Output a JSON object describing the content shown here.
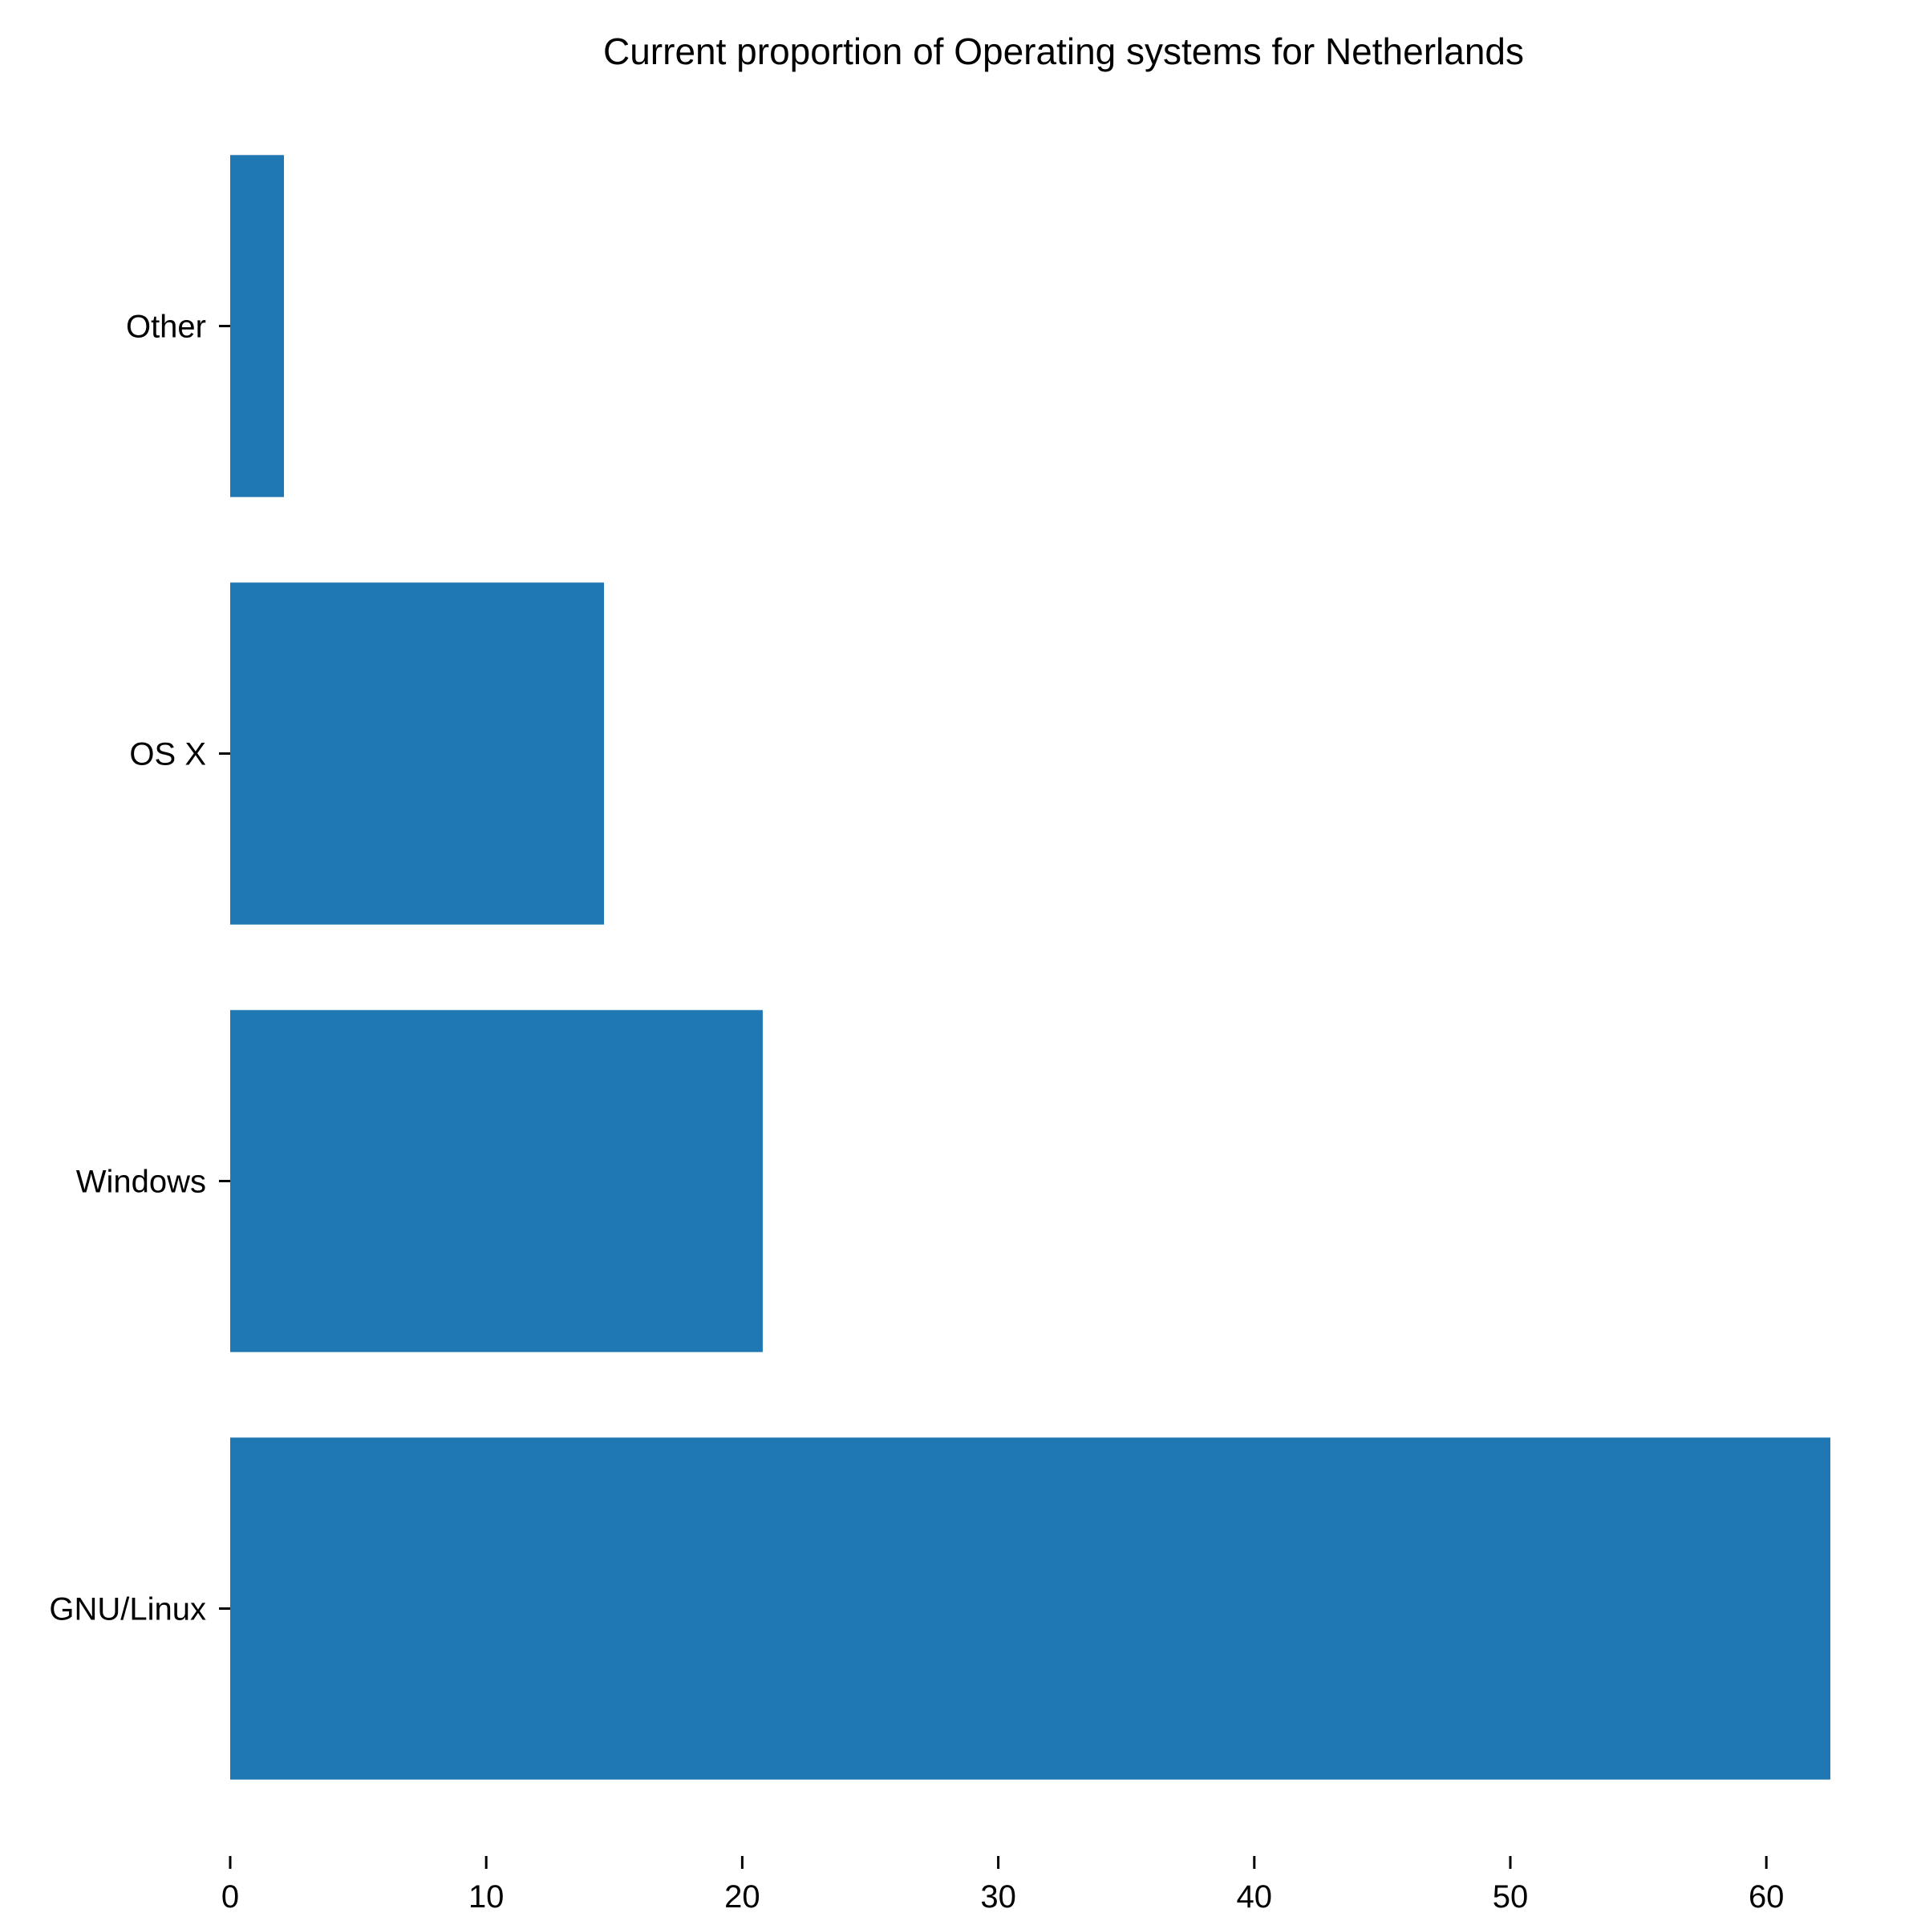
{
  "chart_data": {
    "type": "bar",
    "orientation": "horizontal",
    "title": "Current proportion of Operating systems for Netherlands",
    "xlabel": "",
    "ylabel": "",
    "categories": [
      "Other",
      "OS X",
      "Windows",
      "GNU/Linux"
    ],
    "values": [
      2.1,
      14.6,
      20.8,
      62.5
    ],
    "xlim": [
      0,
      62.5
    ],
    "x_ticks": [
      0,
      10,
      20,
      30,
      40,
      50,
      60
    ],
    "bar_color": "#1f77b4",
    "grid": false,
    "legend": "none"
  }
}
